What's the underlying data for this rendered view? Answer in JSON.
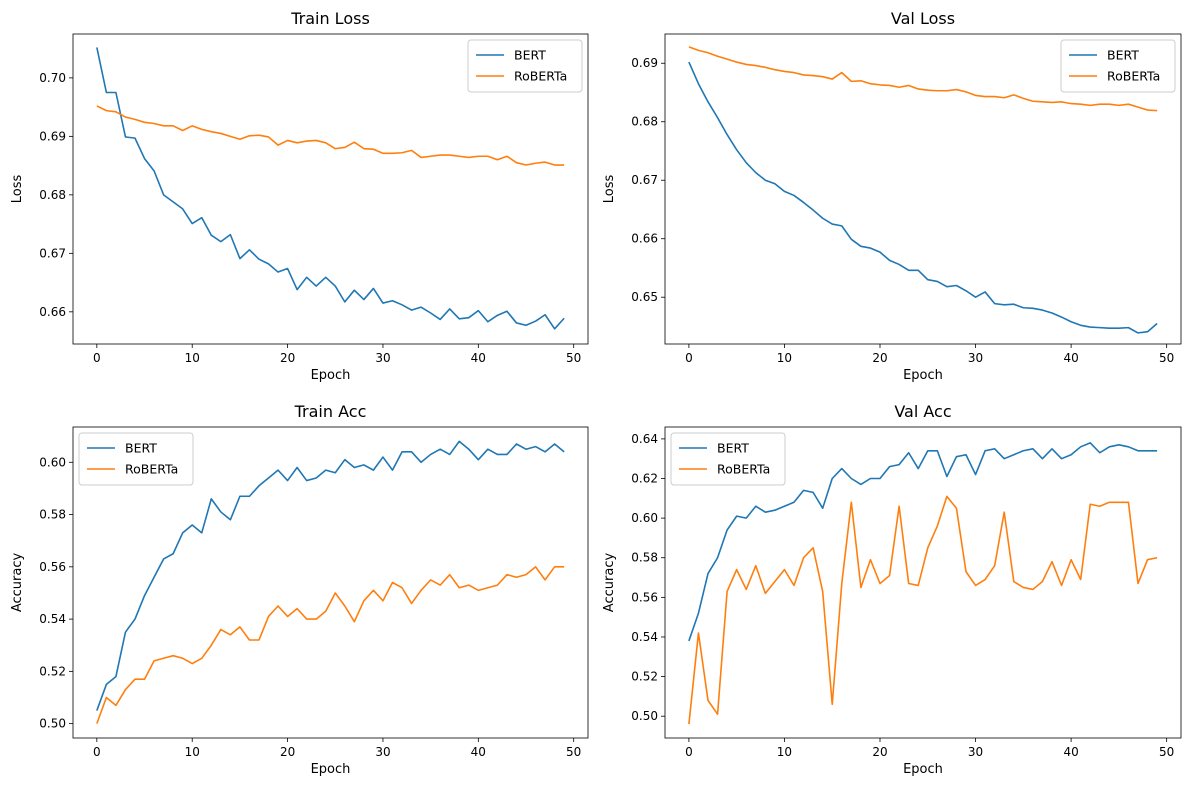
{
  "figure_background": "#ffffff",
  "series_colors": {
    "BERT": "#1f77b4",
    "RoBERTa": "#ff7f0e"
  },
  "chart_data": [
    {
      "type": "line",
      "title": "Train Loss",
      "xlabel": "Epoch",
      "ylabel": "Loss",
      "xlim": [
        -2.5,
        51.5
      ],
      "ylim": [
        0.6545,
        0.7075
      ],
      "xticks": [
        0,
        10,
        20,
        30,
        40,
        50
      ],
      "yticks": [
        0.66,
        0.67,
        0.68,
        0.69,
        0.7
      ],
      "ytick_labels": [
        "0.66",
        "0.67",
        "0.68",
        "0.69",
        "0.70"
      ],
      "legend": "top-right",
      "series": [
        {
          "name": "BERT",
          "values": [
            0.7052,
            0.6975,
            0.6975,
            0.6899,
            0.6897,
            0.6862,
            0.6841,
            0.68,
            0.6788,
            0.6776,
            0.6751,
            0.6761,
            0.6731,
            0.672,
            0.6732,
            0.6691,
            0.6706,
            0.669,
            0.6682,
            0.6668,
            0.6674,
            0.6638,
            0.6659,
            0.6644,
            0.6659,
            0.6644,
            0.6617,
            0.6637,
            0.6621,
            0.664,
            0.6615,
            0.6619,
            0.6612,
            0.6603,
            0.6608,
            0.6598,
            0.6587,
            0.6605,
            0.6588,
            0.659,
            0.6602,
            0.6583,
            0.6594,
            0.6601,
            0.6581,
            0.6577,
            0.6584,
            0.6595,
            0.6571,
            0.6589
          ]
        },
        {
          "name": "RoBERTa",
          "values": [
            0.6952,
            0.6944,
            0.6942,
            0.6933,
            0.6929,
            0.6924,
            0.6922,
            0.6918,
            0.6918,
            0.691,
            0.6918,
            0.6912,
            0.6908,
            0.6905,
            0.69,
            0.6895,
            0.6901,
            0.6902,
            0.6899,
            0.6885,
            0.6893,
            0.6889,
            0.6892,
            0.6893,
            0.6889,
            0.6879,
            0.6881,
            0.689,
            0.6879,
            0.6878,
            0.6871,
            0.6871,
            0.6872,
            0.6876,
            0.6864,
            0.6866,
            0.6868,
            0.6868,
            0.6866,
            0.6864,
            0.6866,
            0.6866,
            0.686,
            0.6866,
            0.6855,
            0.6851,
            0.6854,
            0.6856,
            0.6851,
            0.6851
          ]
        }
      ]
    },
    {
      "type": "line",
      "title": "Val Loss",
      "xlabel": "Epoch",
      "ylabel": "Loss",
      "xlim": [
        -2.5,
        51.5
      ],
      "ylim": [
        0.642,
        0.695
      ],
      "xticks": [
        0,
        10,
        20,
        30,
        40,
        50
      ],
      "yticks": [
        0.65,
        0.66,
        0.67,
        0.68,
        0.69
      ],
      "ytick_labels": [
        "0.65",
        "0.66",
        "0.67",
        "0.68",
        "0.69"
      ],
      "legend": "top-right",
      "series": [
        {
          "name": "BERT",
          "values": [
            0.6902,
            0.6865,
            0.6834,
            0.6807,
            0.6778,
            0.6752,
            0.673,
            0.6713,
            0.67,
            0.6694,
            0.6681,
            0.6674,
            0.6662,
            0.6649,
            0.6635,
            0.6625,
            0.6622,
            0.6599,
            0.6587,
            0.6584,
            0.6577,
            0.6563,
            0.6556,
            0.6546,
            0.6546,
            0.653,
            0.6527,
            0.6518,
            0.652,
            0.6511,
            0.65,
            0.6509,
            0.6489,
            0.6487,
            0.6488,
            0.6482,
            0.6481,
            0.6478,
            0.6473,
            0.6466,
            0.6458,
            0.6452,
            0.6449,
            0.6448,
            0.6447,
            0.6447,
            0.6448,
            0.6439,
            0.6441,
            0.6455
          ]
        },
        {
          "name": "RoBERTa",
          "values": [
            0.6928,
            0.6922,
            0.6918,
            0.6912,
            0.6907,
            0.6902,
            0.6898,
            0.6896,
            0.6893,
            0.6889,
            0.6886,
            0.6884,
            0.688,
            0.6879,
            0.6877,
            0.6873,
            0.6884,
            0.6869,
            0.687,
            0.6865,
            0.6863,
            0.6862,
            0.6859,
            0.6862,
            0.6856,
            0.6854,
            0.6853,
            0.6853,
            0.6855,
            0.6851,
            0.6845,
            0.6843,
            0.6843,
            0.6841,
            0.6846,
            0.684,
            0.6835,
            0.6834,
            0.6833,
            0.6834,
            0.6831,
            0.683,
            0.6828,
            0.683,
            0.683,
            0.6828,
            0.683,
            0.6825,
            0.682,
            0.6819
          ]
        }
      ]
    },
    {
      "type": "line",
      "title": "Train Acc",
      "xlabel": "Epoch",
      "ylabel": "Accuracy",
      "xlim": [
        -2.5,
        51.5
      ],
      "ylim": [
        0.4945,
        0.6135
      ],
      "xticks": [
        0,
        10,
        20,
        30,
        40,
        50
      ],
      "yticks": [
        0.5,
        0.52,
        0.54,
        0.56,
        0.58,
        0.6
      ],
      "ytick_labels": [
        "0.50",
        "0.52",
        "0.54",
        "0.56",
        "0.58",
        "0.60"
      ],
      "legend": "top-left",
      "series": [
        {
          "name": "BERT",
          "values": [
            0.505,
            0.515,
            0.518,
            0.535,
            0.54,
            0.549,
            0.556,
            0.563,
            0.565,
            0.573,
            0.576,
            0.573,
            0.586,
            0.581,
            0.578,
            0.587,
            0.587,
            0.591,
            0.594,
            0.597,
            0.593,
            0.598,
            0.593,
            0.594,
            0.597,
            0.596,
            0.601,
            0.598,
            0.599,
            0.597,
            0.602,
            0.597,
            0.604,
            0.604,
            0.6,
            0.603,
            0.605,
            0.603,
            0.608,
            0.605,
            0.601,
            0.605,
            0.603,
            0.603,
            0.607,
            0.605,
            0.606,
            0.604,
            0.607,
            0.604
          ]
        },
        {
          "name": "RoBERTa",
          "values": [
            0.5,
            0.51,
            0.507,
            0.513,
            0.517,
            0.517,
            0.524,
            0.525,
            0.526,
            0.525,
            0.523,
            0.525,
            0.53,
            0.536,
            0.534,
            0.537,
            0.532,
            0.532,
            0.541,
            0.545,
            0.541,
            0.544,
            0.54,
            0.54,
            0.543,
            0.55,
            0.545,
            0.539,
            0.547,
            0.551,
            0.547,
            0.554,
            0.552,
            0.546,
            0.551,
            0.555,
            0.553,
            0.557,
            0.552,
            0.553,
            0.551,
            0.552,
            0.553,
            0.557,
            0.556,
            0.557,
            0.56,
            0.555,
            0.56,
            0.56
          ]
        }
      ]
    },
    {
      "type": "line",
      "title": "Val Acc",
      "xlabel": "Epoch",
      "ylabel": "Accuracy",
      "xlim": [
        -2.5,
        51.5
      ],
      "ylim": [
        0.489,
        0.646
      ],
      "xticks": [
        0,
        10,
        20,
        30,
        40,
        50
      ],
      "yticks": [
        0.5,
        0.52,
        0.54,
        0.56,
        0.58,
        0.6,
        0.62,
        0.64
      ],
      "ytick_labels": [
        "0.50",
        "0.52",
        "0.54",
        "0.56",
        "0.58",
        "0.60",
        "0.62",
        "0.64"
      ],
      "legend": "top-left",
      "series": [
        {
          "name": "BERT",
          "values": [
            0.538,
            0.552,
            0.572,
            0.58,
            0.594,
            0.601,
            0.6,
            0.606,
            0.603,
            0.604,
            0.606,
            0.608,
            0.614,
            0.613,
            0.605,
            0.62,
            0.625,
            0.62,
            0.617,
            0.62,
            0.62,
            0.626,
            0.627,
            0.633,
            0.625,
            0.634,
            0.634,
            0.621,
            0.631,
            0.632,
            0.622,
            0.634,
            0.635,
            0.63,
            0.632,
            0.634,
            0.635,
            0.63,
            0.635,
            0.63,
            0.632,
            0.636,
            0.638,
            0.633,
            0.636,
            0.637,
            0.636,
            0.634,
            0.634,
            0.634
          ]
        },
        {
          "name": "RoBERTa",
          "values": [
            0.496,
            0.542,
            0.508,
            0.501,
            0.563,
            0.574,
            0.564,
            0.576,
            0.562,
            0.568,
            0.574,
            0.566,
            0.58,
            0.585,
            0.563,
            0.506,
            0.567,
            0.608,
            0.565,
            0.579,
            0.567,
            0.571,
            0.606,
            0.567,
            0.566,
            0.585,
            0.596,
            0.611,
            0.605,
            0.573,
            0.566,
            0.569,
            0.576,
            0.603,
            0.568,
            0.565,
            0.564,
            0.568,
            0.578,
            0.566,
            0.579,
            0.569,
            0.607,
            0.606,
            0.608,
            0.608,
            0.608,
            0.567,
            0.579,
            0.58
          ]
        }
      ]
    }
  ]
}
